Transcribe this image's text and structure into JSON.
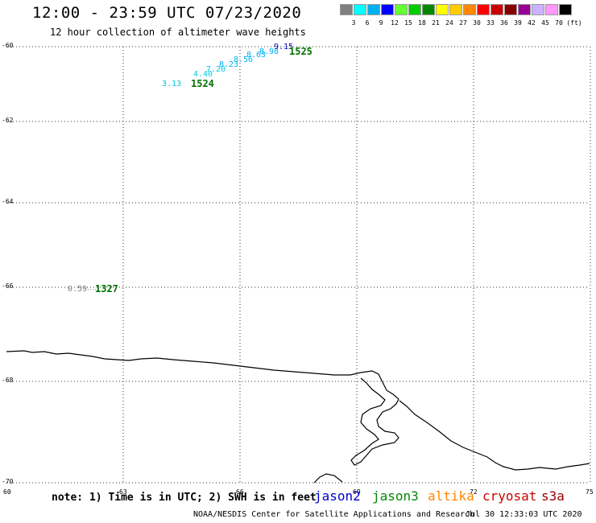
{
  "header": {
    "title": "12:00 - 23:59 UTC 07/23/2020",
    "subtitle": "12 hour collection of altimeter wave heights"
  },
  "legend": {
    "unit": "(ft)",
    "items": [
      {
        "label": "3",
        "color": "#808080"
      },
      {
        "label": "6",
        "color": "#00ffff"
      },
      {
        "label": "9",
        "color": "#00b0f0"
      },
      {
        "label": "12",
        "color": "#0000ff"
      },
      {
        "label": "15",
        "color": "#66ff33"
      },
      {
        "label": "18",
        "color": "#00cc00"
      },
      {
        "label": "21",
        "color": "#008800"
      },
      {
        "label": "24",
        "color": "#ffff00"
      },
      {
        "label": "27",
        "color": "#ffcc00"
      },
      {
        "label": "30",
        "color": "#ff8800"
      },
      {
        "label": "33",
        "color": "#ff0000"
      },
      {
        "label": "36",
        "color": "#cc0000"
      },
      {
        "label": "39",
        "color": "#880000"
      },
      {
        "label": "42",
        "color": "#990099"
      },
      {
        "label": "45",
        "color": "#ccb3ff"
      },
      {
        "label": "70",
        "color": "#ff99ff"
      },
      {
        "label": "",
        "color": "#000000"
      }
    ]
  },
  "axes": {
    "lat_labels": [
      "-60",
      "-62",
      "-64",
      "-66",
      "-68",
      "-70"
    ],
    "lon_labels": [
      "60",
      "63",
      "66",
      "69",
      "72",
      "75"
    ]
  },
  "observations": {
    "wave_heights": [
      {
        "text": "3.13",
        "color": "#00c8e0"
      },
      {
        "text": "4.40",
        "color": "#00c8e0"
      },
      {
        "text": "7.20",
        "color": "#00c8e0"
      },
      {
        "text": "8.23",
        "color": "#00b0f0"
      },
      {
        "text": "8.56",
        "color": "#00b0f0"
      },
      {
        "text": "8.63",
        "color": "#00b0f0"
      },
      {
        "text": "8.98",
        "color": "#00b0f0"
      },
      {
        "text": "9.15",
        "color": "#0000cc"
      },
      {
        "text": "0.59",
        "color": "#808080"
      }
    ],
    "revolutions": [
      "1524",
      "1525",
      "1327"
    ]
  },
  "footer": {
    "note": "note: 1) Time is in UTC; 2) SWH is in feet",
    "satellites": [
      {
        "name": "jason2",
        "color": "#0000cc"
      },
      {
        "name": "jason3",
        "color": "#008800"
      },
      {
        "name": "altika",
        "color": "#ff8800"
      },
      {
        "name": "cryosat",
        "color": "#cc0000"
      },
      {
        "name": "s3a",
        "color": "#990000"
      }
    ],
    "credit": "NOAA/NESDIS Center for Satellite Applications and Research",
    "timestamp": "Jul 30 12:33:03 UTC 2020"
  }
}
